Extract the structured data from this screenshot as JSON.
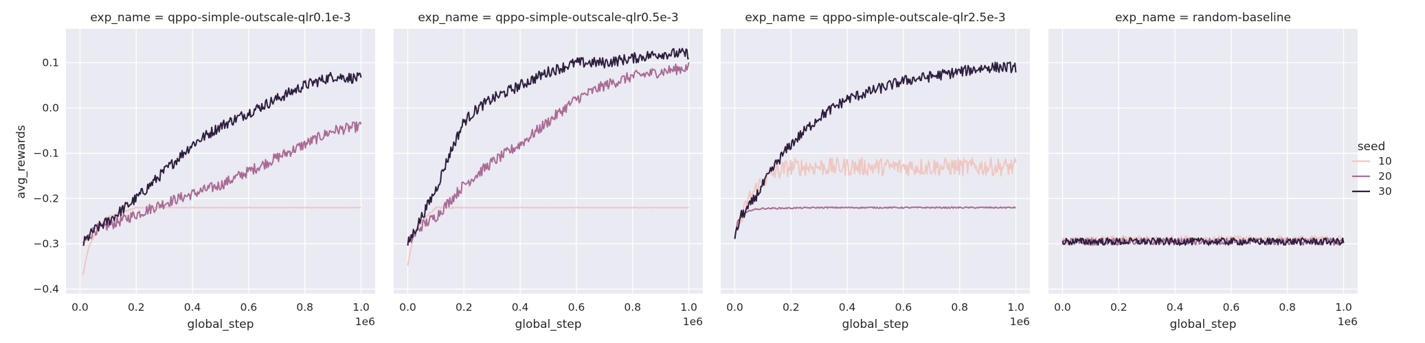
{
  "chart_data": {
    "type": "line",
    "hue": "seed",
    "xlabel": "global_step",
    "ylabel": "avg_rewards",
    "x_offset_label": "1e6",
    "xlim": [
      -0.05,
      1.05
    ],
    "ylim": [
      -0.41,
      0.175
    ],
    "xticks": [
      0.0,
      0.2,
      0.4,
      0.6,
      0.8,
      1.0
    ],
    "xtick_labels": [
      "0.0",
      "0.2",
      "0.4",
      "0.6",
      "0.8",
      "1.0"
    ],
    "yticks": [
      -0.4,
      -0.3,
      -0.2,
      -0.1,
      0.0,
      0.1
    ],
    "ytick_labels": [
      "−0.4",
      "−0.3",
      "−0.2",
      "−0.1",
      "0.0",
      "0.1"
    ],
    "grid": true,
    "legend": {
      "title": "seed",
      "placement": "right",
      "entries": [
        {
          "label": "10",
          "color": "#efc7c0"
        },
        {
          "label": "20",
          "color": "#a96b95"
        },
        {
          "label": "30",
          "color": "#2d1e3e"
        }
      ]
    },
    "panels": [
      {
        "title": "exp_name = qppo-simple-outscale-qlr0.1e-3",
        "series": [
          {
            "name": "10",
            "x": [
              0.01,
              0.03,
              0.06,
              0.1,
              0.15,
              0.2,
              0.3,
              0.5,
              0.7,
              1.0
            ],
            "y": [
              -0.37,
              -0.31,
              -0.27,
              -0.24,
              -0.23,
              -0.22,
              -0.22,
              -0.22,
              -0.22,
              -0.22
            ]
          },
          {
            "name": "20",
            "x": [
              0.01,
              0.05,
              0.1,
              0.2,
              0.3,
              0.4,
              0.5,
              0.6,
              0.7,
              0.8,
              0.9,
              1.0
            ],
            "y": [
              -0.3,
              -0.27,
              -0.26,
              -0.235,
              -0.21,
              -0.19,
              -0.17,
              -0.14,
              -0.11,
              -0.08,
              -0.05,
              -0.04
            ]
          },
          {
            "name": "30",
            "x": [
              0.01,
              0.05,
              0.1,
              0.2,
              0.3,
              0.4,
              0.5,
              0.6,
              0.7,
              0.8,
              0.9,
              1.0
            ],
            "y": [
              -0.3,
              -0.27,
              -0.25,
              -0.2,
              -0.14,
              -0.08,
              -0.04,
              -0.01,
              0.02,
              0.05,
              0.07,
              0.065
            ]
          }
        ]
      },
      {
        "title": "exp_name = qppo-simple-outscale-qlr0.5e-3",
        "series": [
          {
            "name": "10",
            "x": [
              0.0,
              0.02,
              0.05,
              0.1,
              0.15,
              0.2,
              0.5,
              1.0
            ],
            "y": [
              -0.35,
              -0.28,
              -0.25,
              -0.22,
              -0.22,
              -0.22,
              -0.22,
              -0.22
            ]
          },
          {
            "name": "20",
            "x": [
              0.0,
              0.05,
              0.1,
              0.2,
              0.3,
              0.4,
              0.5,
              0.6,
              0.7,
              0.8,
              0.9,
              1.0
            ],
            "y": [
              -0.3,
              -0.26,
              -0.24,
              -0.17,
              -0.12,
              -0.08,
              -0.03,
              0.02,
              0.05,
              0.07,
              0.08,
              0.09
            ]
          },
          {
            "name": "30",
            "x": [
              0.0,
              0.05,
              0.1,
              0.15,
              0.2,
              0.25,
              0.3,
              0.4,
              0.5,
              0.6,
              0.7,
              0.8,
              0.9,
              1.0
            ],
            "y": [
              -0.3,
              -0.24,
              -0.18,
              -0.1,
              -0.03,
              0.0,
              0.02,
              0.05,
              0.08,
              0.1,
              0.1,
              0.11,
              0.12,
              0.12
            ]
          }
        ]
      },
      {
        "title": "exp_name = qppo-simple-outscale-qlr2.5e-3",
        "series": [
          {
            "name": "10",
            "x": [
              0.01,
              0.05,
              0.1,
              0.15,
              0.2,
              0.3,
              0.4,
              0.5,
              0.6,
              0.7,
              0.8,
              0.9,
              1.0
            ],
            "y": [
              -0.27,
              -0.2,
              -0.16,
              -0.14,
              -0.13,
              -0.13,
              -0.13,
              -0.13,
              -0.13,
              -0.13,
              -0.13,
              -0.13,
              -0.13
            ]
          },
          {
            "name": "20",
            "x": [
              0.0,
              0.01,
              0.03,
              0.06,
              0.1,
              0.2,
              0.3,
              0.5,
              0.7,
              1.0
            ],
            "y": [
              -0.29,
              -0.25,
              -0.235,
              -0.225,
              -0.222,
              -0.221,
              -0.22,
              -0.22,
              -0.22,
              -0.22
            ]
          },
          {
            "name": "30",
            "x": [
              0.0,
              0.02,
              0.05,
              0.1,
              0.15,
              0.2,
              0.3,
              0.4,
              0.5,
              0.6,
              0.7,
              0.8,
              0.9,
              1.0
            ],
            "y": [
              -0.29,
              -0.24,
              -0.22,
              -0.17,
              -0.12,
              -0.08,
              -0.02,
              0.02,
              0.04,
              0.06,
              0.07,
              0.08,
              0.09,
              0.09
            ]
          }
        ]
      },
      {
        "title": "exp_name = random-baseline",
        "series": [
          {
            "name": "10",
            "x": [
              0.0,
              0.2,
              0.4,
              0.6,
              0.8,
              1.0
            ],
            "y": [
              -0.295,
              -0.29,
              -0.29,
              -0.29,
              -0.29,
              -0.29
            ]
          },
          {
            "name": "20",
            "x": [
              0.0,
              0.2,
              0.4,
              0.6,
              0.8,
              1.0
            ],
            "y": [
              -0.295,
              -0.295,
              -0.295,
              -0.295,
              -0.295,
              -0.295
            ]
          },
          {
            "name": "30",
            "x": [
              0.0,
              0.2,
              0.4,
              0.6,
              0.8,
              1.0
            ],
            "y": [
              -0.295,
              -0.295,
              -0.295,
              -0.295,
              -0.295,
              -0.295
            ]
          }
        ]
      }
    ]
  }
}
